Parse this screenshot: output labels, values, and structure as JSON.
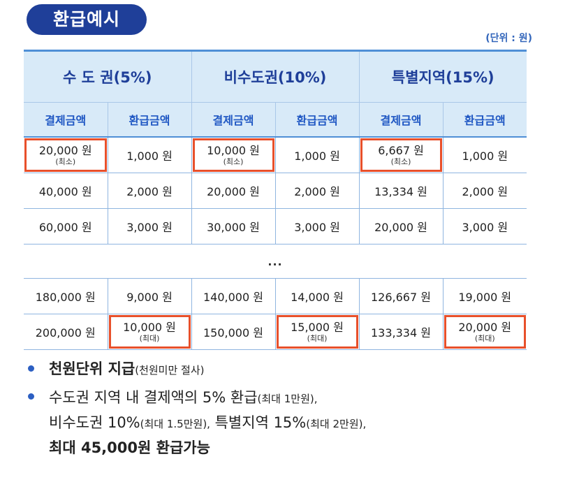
{
  "header": {
    "title": "환급예시",
    "unit": "(단위 : 원)"
  },
  "table": {
    "regions": [
      "수 도 권(5%)",
      "비수도권(10%)",
      "특별지역(15%)"
    ],
    "subheaders": [
      "결제금액",
      "환급금액",
      "결제금액",
      "환급금액",
      "결제금액",
      "환급금액"
    ],
    "rows": [
      [
        {
          "amount": "20,000 원",
          "note": "(최소)"
        },
        {
          "amount": "1,000 원"
        },
        {
          "amount": "10,000 원",
          "note": "(최소)"
        },
        {
          "amount": "1,000 원"
        },
        {
          "amount": "6,667 원",
          "note": "(최소)"
        },
        {
          "amount": "1,000 원"
        }
      ],
      [
        {
          "amount": "40,000 원"
        },
        {
          "amount": "2,000 원"
        },
        {
          "amount": "20,000 원"
        },
        {
          "amount": "2,000 원"
        },
        {
          "amount": "13,334 원"
        },
        {
          "amount": "2,000 원"
        }
      ],
      [
        {
          "amount": "60,000 원"
        },
        {
          "amount": "3,000 원"
        },
        {
          "amount": "30,000 원"
        },
        {
          "amount": "3,000 원"
        },
        {
          "amount": "20,000 원"
        },
        {
          "amount": "3,000 원"
        }
      ]
    ],
    "ellipsis": "...",
    "rows_bottom": [
      [
        {
          "amount": "180,000 원"
        },
        {
          "amount": "9,000 원"
        },
        {
          "amount": "140,000 원"
        },
        {
          "amount": "14,000 원"
        },
        {
          "amount": "126,667 원"
        },
        {
          "amount": "19,000 원"
        }
      ],
      [
        {
          "amount": "200,000 원"
        },
        {
          "amount": "10,000 원",
          "note": "(최대)"
        },
        {
          "amount": "150,000 원"
        },
        {
          "amount": "15,000 원",
          "note": "(최대)"
        },
        {
          "amount": "133,334 원"
        },
        {
          "amount": "20,000 원",
          "note": "(최대)"
        }
      ]
    ]
  },
  "bullets": {
    "item1": {
      "strong": "천원단위 지급",
      "small": "(천원미만 절사)"
    },
    "item2": {
      "line1_a": "수도권 지역 내 결제액의 5% 환급",
      "line1_b": "(최대 1만원),",
      "line2_a": "비수도권 10%",
      "line2_b": "(최대 1.5만원),",
      "line2_c": " 특별지역 15%",
      "line2_d": "(최대 2만원),",
      "line3": "최대 45,000원 환급가능"
    }
  },
  "colors": {
    "accent": "#1f3f99",
    "header_bg": "#d8eaf8",
    "highlight_border": "#e8502b",
    "bullet": "#2c5fc2"
  }
}
